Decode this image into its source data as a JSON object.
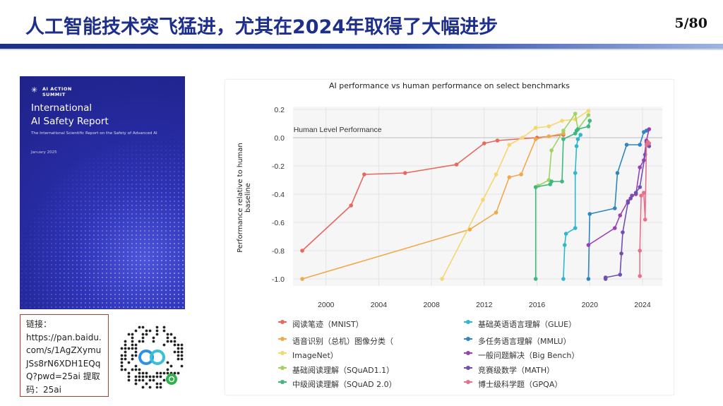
{
  "header": {
    "title": "人工智能技术突飞猛进，尤其在2024年取得了大幅进步",
    "page": "5/80"
  },
  "cover": {
    "logo": "AI ACTION\nSUMMIT",
    "title_line1": "International",
    "title_line2": "AI Safety Report",
    "subtitle": "The International Scientific Report on the Safety of Advanced AI",
    "date": "January 2025"
  },
  "link_box": {
    "text": "链接：\nhttps://pan.baidu.\ncom/s/1AgZXymu\nJSs8rN6XDH1EQq\nQ?pwd=25ai 提取\n码：25ai"
  },
  "chart_data": {
    "type": "line",
    "title": "AI performance vs human performance on select benchmarks",
    "ylabel": "Performance relative to human baseline",
    "xlabel": "",
    "annotation": "Human Level Performance",
    "xlim": [
      1997.5,
      2025.5
    ],
    "ylim": [
      -1.05,
      0.22
    ],
    "xticks": [
      2000,
      2004,
      2008,
      2012,
      2016,
      2020,
      2024
    ],
    "yticks": [
      0.2,
      0.0,
      -0.2,
      -0.4,
      -0.6,
      -0.8,
      -1.0
    ],
    "series": [
      {
        "name": "阅读笔迹（MNIST）",
        "color": "#e8675f",
        "x": [
          1998.2,
          2001.9,
          2002.9,
          2006.0,
          2009.9,
          2012.0,
          2013.0,
          2016.0,
          2018.0
        ],
        "y": [
          -0.8,
          -0.48,
          -0.26,
          -0.25,
          -0.19,
          -0.04,
          -0.02,
          0.0,
          0.02
        ]
      },
      {
        "name": "语音识别（总机）",
        "color": "#f0a94a",
        "x": [
          1998.2,
          2010.9,
          2012.9,
          2013.9,
          2014.8,
          2015.9,
          2016.9,
          2018.0
        ],
        "y": [
          -1.0,
          -0.65,
          -0.53,
          -0.28,
          -0.26,
          -0.01,
          0.01,
          0.03
        ]
      },
      {
        "name": "图像分类（ImageNet）",
        "color": "#f5d76e",
        "x": [
          2008.8,
          2011.9,
          2012.9,
          2013.9,
          2014.9,
          2015.9,
          2016.9,
          2017.9,
          2018.9,
          2019.9
        ],
        "y": [
          -1.0,
          -0.44,
          -0.26,
          -0.05,
          0.0,
          0.07,
          0.08,
          0.12,
          0.13,
          0.19
        ]
      },
      {
        "name": "基础阅读理解（SQuAD1.1）",
        "color": "#9ed460",
        "x": [
          2015.9,
          2016.1,
          2016.9,
          2017.1,
          2018.0,
          2018.9,
          2019.1,
          2019.9
        ],
        "y": [
          -0.35,
          -0.34,
          -0.3,
          -0.09,
          0.05,
          0.17,
          0.06,
          0.16
        ]
      },
      {
        "name": "中级阅读理解（SQuAD 2.0）",
        "color": "#3fb87f",
        "x": [
          2015.9,
          2015.9,
          2017.0,
          2017.1,
          2017.9,
          2018.0,
          2018.9,
          2019.0,
          2019.1,
          2019.9,
          2020.0
        ],
        "y": [
          -1.0,
          -0.35,
          -0.33,
          -0.31,
          -0.31,
          -0.01,
          0.03,
          0.05,
          0.06,
          0.08,
          0.12
        ]
      },
      {
        "name": "基础英语语言理解（GLUE）",
        "color": "#2fb7cf",
        "x": [
          2018.0,
          2018.1,
          2018.2,
          2018.9,
          2018.9,
          2019.0,
          2019.1,
          2019.3
        ],
        "y": [
          -1.0,
          -0.76,
          -0.68,
          -0.64,
          -0.25,
          -0.06,
          -0.01,
          0.02
        ]
      },
      {
        "name": "多任务语言理解（MMLU）",
        "color": "#2e86c1",
        "x": [
          2019.9,
          2020.0,
          2021.9,
          2022.1,
          2022.8,
          2023.8,
          2024.1,
          2024.3
        ],
        "y": [
          -1.0,
          -0.54,
          -0.5,
          -0.25,
          -0.05,
          -0.05,
          0.04,
          0.05
        ]
      },
      {
        "name": "一般问题解决（Big Bench）",
        "color": "#9b3fb7",
        "x": [
          2019.9,
          2021.9,
          2022.3,
          2022.9,
          2023.2,
          2023.5,
          2023.8,
          2024.1,
          2024.3,
          2024.5
        ],
        "y": [
          -0.76,
          -0.64,
          -0.55,
          -0.45,
          -0.41,
          -0.4,
          -0.21,
          -0.16,
          -0.02,
          0.06
        ]
      },
      {
        "name": "竞赛级数学（MATH）",
        "color": "#6f4fb0",
        "x": [
          2021.2,
          2021.2,
          2022.3,
          2022.4,
          2022.5,
          2022.9,
          2023.1,
          2023.5,
          2023.8,
          2024.2,
          2024.3,
          2024.5
        ],
        "y": [
          -1.0,
          -0.99,
          -0.97,
          -0.82,
          -0.67,
          -0.46,
          -0.43,
          -0.39,
          -0.35,
          -0.12,
          -0.03,
          -0.06
        ]
      },
      {
        "name": "博士级科学题（GPQA）",
        "color": "#e8708d",
        "x": [
          2023.8,
          2023.8,
          2023.9,
          2024.1,
          2024.2,
          2024.3,
          2024.4,
          2024.5
        ],
        "y": [
          -0.98,
          -0.8,
          -0.41,
          -0.39,
          -0.58,
          -0.05,
          -0.03,
          -0.04
        ]
      }
    ],
    "legend": [
      {
        "label": "阅读笔迹（MNIST）",
        "color": "#e8675f"
      },
      {
        "label": "语音识别（总机）图像分类（",
        "color": "#f0a94a"
      },
      {
        "label": "ImageNet）",
        "color": "#f5d76e"
      },
      {
        "label": "基础阅读理解（SQuAD1.1）",
        "color": "#9ed460"
      },
      {
        "label": "中级阅读理解（SQuAD 2.0）",
        "color": "#3fb87f"
      },
      {
        "label": "基础英语语言理解（GLUE）",
        "color": "#2fb7cf"
      },
      {
        "label": "多任务语言理解（MMLU）",
        "color": "#2e86c1"
      },
      {
        "label": "一般问题解决（Big Bench）",
        "color": "#9b3fb7"
      },
      {
        "label": "竞赛级数学（MATH）",
        "color": "#6f4fb0"
      },
      {
        "label": "博士级科学题（GPQA）",
        "color": "#e8708d"
      }
    ]
  }
}
